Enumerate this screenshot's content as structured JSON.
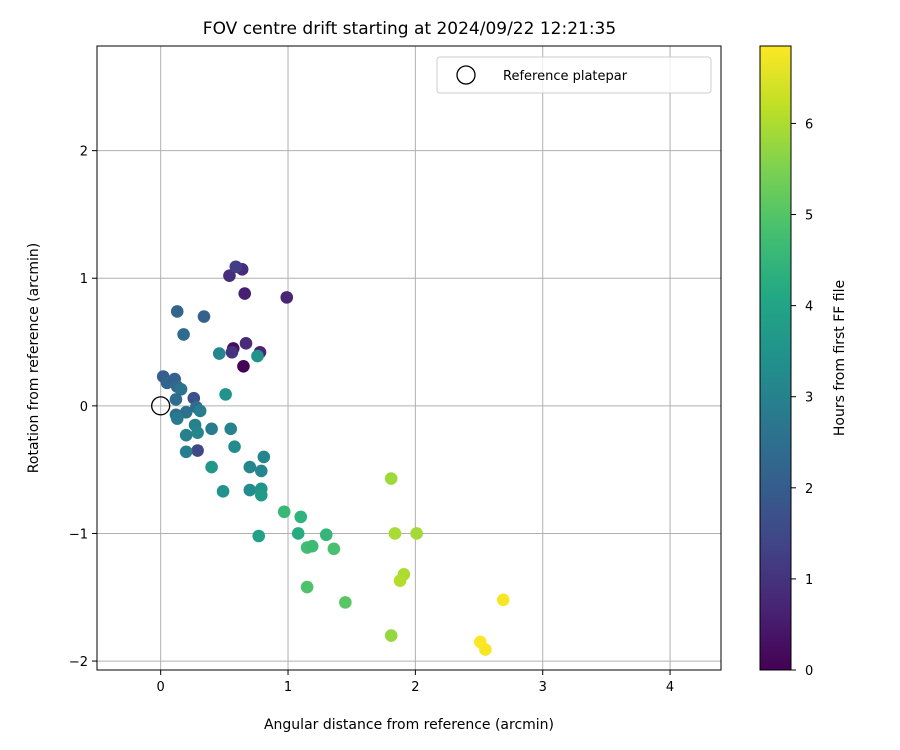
{
  "chart_data": {
    "type": "scatter",
    "title": "FOV centre drift starting at 2024/09/22 12:21:35",
    "xlabel": "Angular distance from reference (arcmin)",
    "ylabel": "Rotation from reference (arcmin)",
    "xlim": [
      -0.5,
      4.4
    ],
    "ylim": [
      -2.07,
      2.82
    ],
    "xticks": [
      0,
      1,
      2,
      3,
      4
    ],
    "yticks": [
      -2,
      -1,
      0,
      1,
      2
    ],
    "xtick_labels": [
      "0",
      "1",
      "2",
      "3",
      "4"
    ],
    "ytick_labels": [
      "−2",
      "−1",
      "0",
      "1",
      "2"
    ],
    "grid": true,
    "legend": {
      "label": "Reference platepar",
      "location": "upper right"
    },
    "reference_point": {
      "x": 0,
      "y": 0
    },
    "colorbar": {
      "label": "Hours from first FF file",
      "colormap": "viridis",
      "range": [
        0,
        6.85
      ],
      "ticks": [
        0,
        1,
        2,
        3,
        4,
        5,
        6
      ],
      "tick_labels": [
        "0",
        "1",
        "2",
        "3",
        "4",
        "5",
        "6"
      ]
    },
    "points": [
      {
        "x": 0.65,
        "y": 0.31,
        "hours": 0.05
      },
      {
        "x": 0.57,
        "y": 0.45,
        "hours": 0.3
      },
      {
        "x": 0.78,
        "y": 0.42,
        "hours": 0.7
      },
      {
        "x": 0.67,
        "y": 0.49,
        "hours": 0.85
      },
      {
        "x": 0.56,
        "y": 0.42,
        "hours": 1.0
      },
      {
        "x": 0.66,
        "y": 0.88,
        "hours": 0.6
      },
      {
        "x": 0.99,
        "y": 0.85,
        "hours": 0.7
      },
      {
        "x": 0.54,
        "y": 1.02,
        "hours": 0.9
      },
      {
        "x": 0.64,
        "y": 1.07,
        "hours": 0.85
      },
      {
        "x": 0.59,
        "y": 1.09,
        "hours": 1.25
      },
      {
        "x": 0.29,
        "y": -0.35,
        "hours": 1.5
      },
      {
        "x": 0.26,
        "y": 0.06,
        "hours": 1.7
      },
      {
        "x": 0.34,
        "y": 0.7,
        "hours": 2.1
      },
      {
        "x": 0.13,
        "y": 0.74,
        "hours": 2.2
      },
      {
        "x": 0.18,
        "y": 0.56,
        "hours": 2.35
      },
      {
        "x": 0.02,
        "y": 0.23,
        "hours": 2.0
      },
      {
        "x": 0.05,
        "y": 0.18,
        "hours": 2.2
      },
      {
        "x": 0.11,
        "y": 0.21,
        "hours": 2.1
      },
      {
        "x": 0.13,
        "y": 0.15,
        "hours": 2.3
      },
      {
        "x": 0.16,
        "y": 0.13,
        "hours": 2.6
      },
      {
        "x": 0.12,
        "y": 0.05,
        "hours": 2.4
      },
      {
        "x": 0.12,
        "y": -0.07,
        "hours": 2.5
      },
      {
        "x": 0.2,
        "y": -0.05,
        "hours": 2.55
      },
      {
        "x": 0.28,
        "y": -0.01,
        "hours": 2.4
      },
      {
        "x": 0.31,
        "y": -0.04,
        "hours": 2.9
      },
      {
        "x": 0.13,
        "y": -0.1,
        "hours": 2.8
      },
      {
        "x": 0.27,
        "y": -0.15,
        "hours": 3.0
      },
      {
        "x": 0.29,
        "y": -0.21,
        "hours": 3.1
      },
      {
        "x": 0.2,
        "y": -0.23,
        "hours": 3.0
      },
      {
        "x": 0.2,
        "y": -0.36,
        "hours": 2.9
      },
      {
        "x": 0.4,
        "y": -0.18,
        "hours": 2.85
      },
      {
        "x": 0.55,
        "y": -0.18,
        "hours": 3.05
      },
      {
        "x": 0.46,
        "y": 0.41,
        "hours": 3.1
      },
      {
        "x": 0.76,
        "y": 0.39,
        "hours": 3.5
      },
      {
        "x": 0.51,
        "y": 0.09,
        "hours": 3.45
      },
      {
        "x": 0.58,
        "y": -0.32,
        "hours": 3.25
      },
      {
        "x": 0.81,
        "y": -0.4,
        "hours": 3.1
      },
      {
        "x": 0.7,
        "y": -0.48,
        "hours": 3.15
      },
      {
        "x": 0.79,
        "y": -0.51,
        "hours": 3.15
      },
      {
        "x": 0.4,
        "y": -0.48,
        "hours": 3.6
      },
      {
        "x": 0.49,
        "y": -0.67,
        "hours": 3.45
      },
      {
        "x": 0.7,
        "y": -0.66,
        "hours": 3.3
      },
      {
        "x": 0.79,
        "y": -0.65,
        "hours": 3.55
      },
      {
        "x": 0.79,
        "y": -0.7,
        "hours": 3.7
      },
      {
        "x": 0.77,
        "y": -1.02,
        "hours": 3.9
      },
      {
        "x": 0.97,
        "y": -0.83,
        "hours": 4.55
      },
      {
        "x": 1.1,
        "y": -0.87,
        "hours": 4.4
      },
      {
        "x": 1.08,
        "y": -1.0,
        "hours": 4.2
      },
      {
        "x": 1.15,
        "y": -1.11,
        "hours": 4.75
      },
      {
        "x": 1.19,
        "y": -1.1,
        "hours": 4.65
      },
      {
        "x": 1.3,
        "y": -1.01,
        "hours": 4.5
      },
      {
        "x": 1.36,
        "y": -1.12,
        "hours": 4.85
      },
      {
        "x": 1.15,
        "y": -1.42,
        "hours": 4.9
      },
      {
        "x": 1.45,
        "y": -1.54,
        "hours": 5.05
      },
      {
        "x": 1.81,
        "y": -0.57,
        "hours": 5.85
      },
      {
        "x": 1.84,
        "y": -1.0,
        "hours": 5.95
      },
      {
        "x": 2.01,
        "y": -1.0,
        "hours": 5.9
      },
      {
        "x": 1.91,
        "y": -1.32,
        "hours": 6.0
      },
      {
        "x": 1.88,
        "y": -1.37,
        "hours": 6.05
      },
      {
        "x": 1.81,
        "y": -1.8,
        "hours": 5.75
      },
      {
        "x": 2.69,
        "y": -1.52,
        "hours": 6.8
      },
      {
        "x": 2.51,
        "y": -1.85,
        "hours": 6.85
      },
      {
        "x": 2.55,
        "y": -1.91,
        "hours": 6.8
      }
    ]
  }
}
